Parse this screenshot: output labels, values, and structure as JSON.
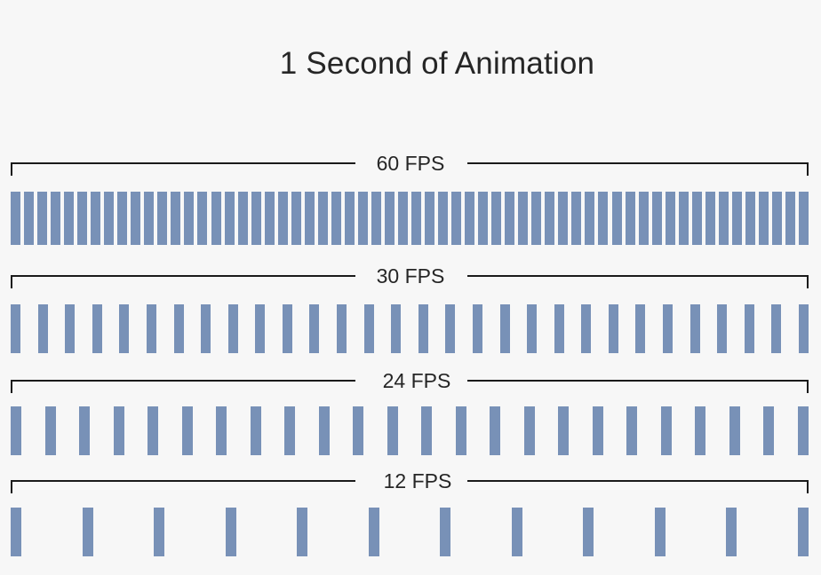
{
  "title": "1 Second of Animation",
  "colors": {
    "bar": "#7891b7",
    "bracket": "#1a1a1a"
  },
  "rows": [
    {
      "label": "60 FPS",
      "frames": 60
    },
    {
      "label": "30 FPS",
      "frames": 30
    },
    {
      "label": "24 FPS",
      "frames": 24
    },
    {
      "label": "12 FPS",
      "frames": 12
    }
  ]
}
